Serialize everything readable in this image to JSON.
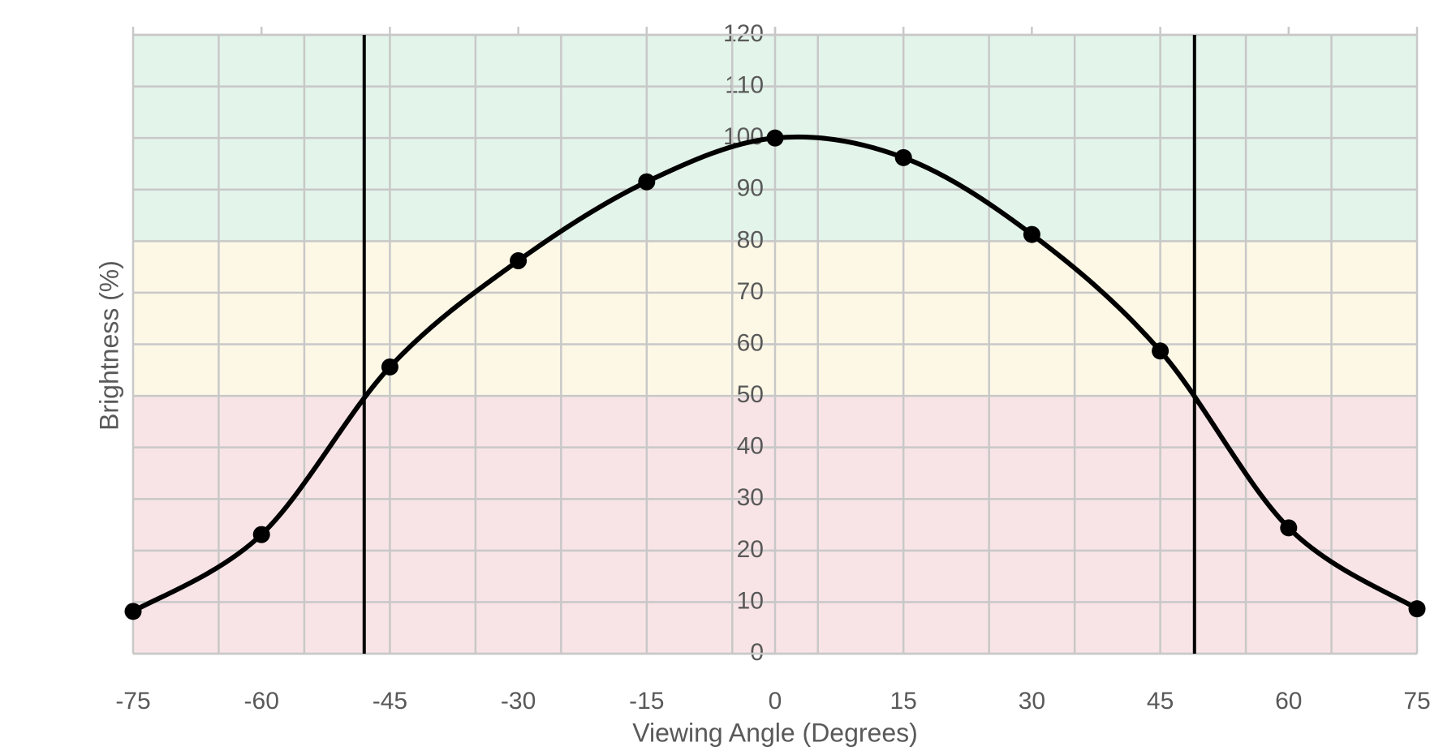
{
  "chart_data": {
    "type": "line",
    "x_label": "Viewing Angle (Degrees)",
    "y_label": "Brightness (%)",
    "x": [
      -75,
      -60,
      -45,
      -30,
      -15,
      0,
      15,
      30,
      45,
      60,
      75
    ],
    "series": [
      {
        "color": "#000000",
        "values": [
          8.2,
          23.1,
          55.6,
          76.2,
          91.5,
          100,
          96.2,
          81.3,
          58.7,
          24.4,
          8.7
        ]
      }
    ],
    "xlim": [
      -75,
      75
    ],
    "xticks": [
      -75,
      -60,
      -45,
      -30,
      -15,
      0,
      15,
      30,
      45,
      60,
      75
    ],
    "x_grid_lines": [
      -75,
      -65,
      -55,
      -45,
      -35,
      -25,
      -15,
      -5,
      5,
      15,
      25,
      35,
      45,
      55,
      65,
      75
    ],
    "ylim": [
      0,
      120
    ],
    "yticks": [
      0,
      10,
      20,
      30,
      40,
      50,
      60,
      70,
      80,
      90,
      100,
      110,
      120
    ],
    "grid": true,
    "reference_lines": [
      -48,
      49
    ],
    "bands": [
      {
        "from": 80,
        "to": 120,
        "color": "#e3f4ea"
      },
      {
        "from": 50,
        "to": 80,
        "color": "#fdf8e6"
      },
      {
        "from": 0,
        "to": 50,
        "color": "#f8e4e6"
      }
    ]
  }
}
